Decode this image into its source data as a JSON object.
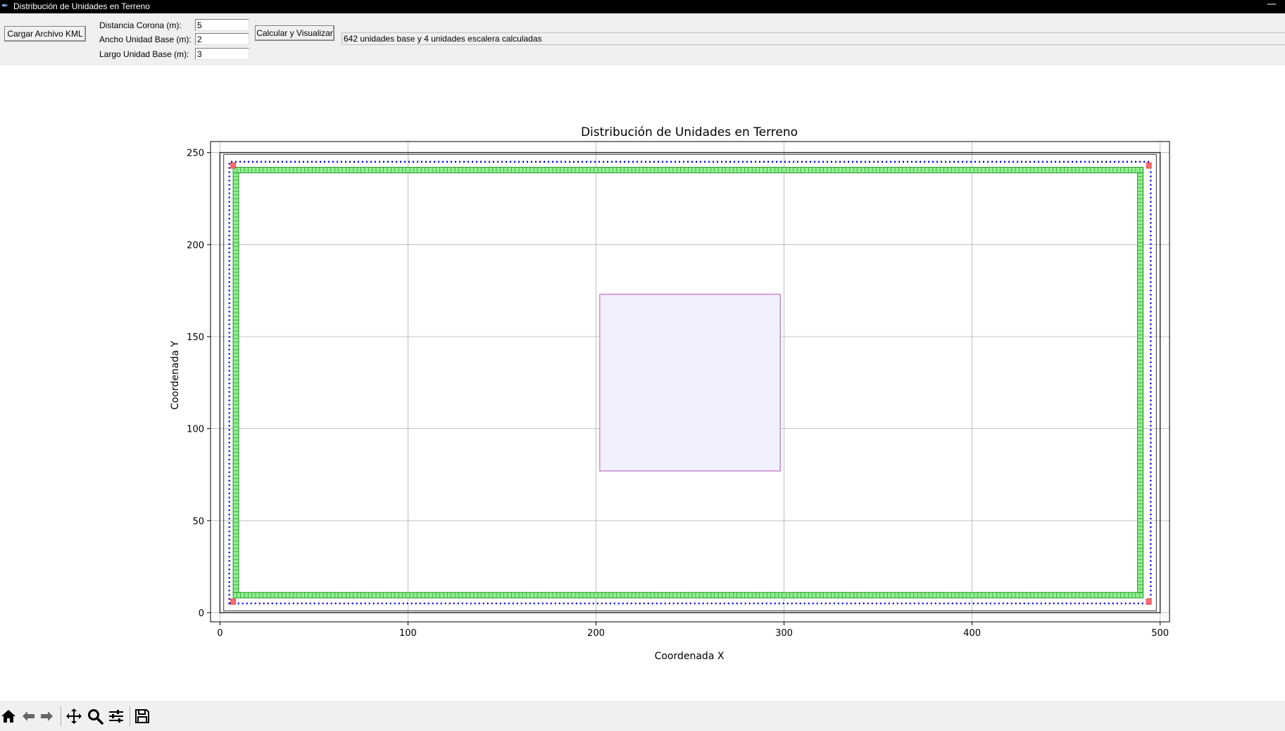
{
  "window": {
    "title": "Distribución de Unidades en Terreno"
  },
  "controls": {
    "load_button": "Cargar Archivo KML",
    "corona_label": "Distancia Corona (m):",
    "corona_value": "5",
    "ancho_label": "Ancho Unidad Base (m):",
    "ancho_value": "2",
    "largo_label": "Largo Unidad Base (m):",
    "largo_value": "3",
    "calc_button": "Calcular y Visualizar",
    "status": "642 unidades base y 4 unidades escalera calculadas"
  },
  "chart_data": {
    "type": "scatter",
    "title": "Distribución de Unidades en Terreno",
    "xlabel": "Coordenada X",
    "ylabel": "Coordenada Y",
    "xlim": [
      -5,
      505
    ],
    "ylim": [
      -5,
      256
    ],
    "xticks": [
      0,
      100,
      200,
      300,
      400,
      500
    ],
    "yticks": [
      0,
      50,
      100,
      150,
      200,
      250
    ],
    "grid": true,
    "terrain_outer": [
      [
        0,
        0
      ],
      [
        500,
        0
      ],
      [
        500,
        250
      ],
      [
        0,
        250
      ]
    ],
    "terrain_inner": [
      [
        2,
        1
      ],
      [
        498,
        1
      ],
      [
        498,
        249
      ],
      [
        2,
        249
      ]
    ],
    "corona_line": [
      [
        5,
        5
      ],
      [
        495,
        5
      ],
      [
        495,
        245
      ],
      [
        5,
        245
      ]
    ],
    "obstacle": [
      [
        202,
        77
      ],
      [
        298,
        77
      ],
      [
        298,
        173
      ],
      [
        202,
        173
      ]
    ],
    "unit_rows": [
      {
        "side": "bottom",
        "x": [
          7,
          491
        ],
        "y": [
          8,
          11
        ]
      },
      {
        "side": "top",
        "x": [
          7,
          491
        ],
        "y": [
          239,
          242
        ]
      },
      {
        "side": "left",
        "x": [
          7,
          10
        ],
        "y": [
          11,
          239
        ]
      },
      {
        "side": "right",
        "x": [
          488,
          491
        ],
        "y": [
          11,
          239
        ]
      }
    ],
    "stair_units": [
      [
        7,
        243
      ],
      [
        494,
        243
      ],
      [
        7,
        6
      ],
      [
        494,
        6
      ]
    ],
    "base_unit_count": 642,
    "stair_unit_count": 4,
    "colors": {
      "unit_fill": "#90ee90",
      "unit_stroke": "#008000",
      "stair_fill": "#ff6b6b",
      "corona": "#0000ff",
      "obstacle_fill": "#f0f0ff",
      "obstacle_stroke": "#c070c0",
      "terrain": "#333333"
    }
  },
  "toolbar": {
    "items": [
      "home-icon",
      "back-icon",
      "forward-icon",
      "pan-icon",
      "zoom-icon",
      "configure-icon",
      "save-icon"
    ]
  }
}
